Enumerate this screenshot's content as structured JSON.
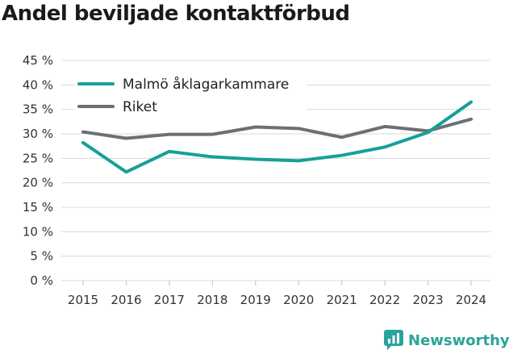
{
  "title": "Andel beviljade kontaktförbud",
  "brand": "Newsworthy",
  "colors": {
    "malmo": "#16a099",
    "riket": "#6e6e75",
    "grid": "#d9d9d9",
    "brand": "#2aa39a"
  },
  "chart_data": {
    "type": "line",
    "title": "Andel beviljade kontaktförbud",
    "x": [
      "2015",
      "2016",
      "2017",
      "2018",
      "2019",
      "2020",
      "2021",
      "2022",
      "2023",
      "2024"
    ],
    "y_ticks": [
      "0 %",
      "5 %",
      "10 %",
      "15 %",
      "20 %",
      "25 %",
      "30 %",
      "35 %",
      "40 %",
      "45 %"
    ],
    "ylim": [
      0,
      45
    ],
    "grid": true,
    "legend_position": "top-left",
    "series": [
      {
        "name": "Malmö åklagarkammare",
        "color": "#16a099",
        "values": [
          28.2,
          22.2,
          26.4,
          25.3,
          24.8,
          24.5,
          25.6,
          27.3,
          30.3,
          36.5
        ]
      },
      {
        "name": "Riket",
        "color": "#6e6e75",
        "values": [
          30.4,
          29.1,
          29.9,
          29.9,
          31.4,
          31.1,
          29.3,
          31.5,
          30.6,
          33.0
        ]
      }
    ]
  }
}
